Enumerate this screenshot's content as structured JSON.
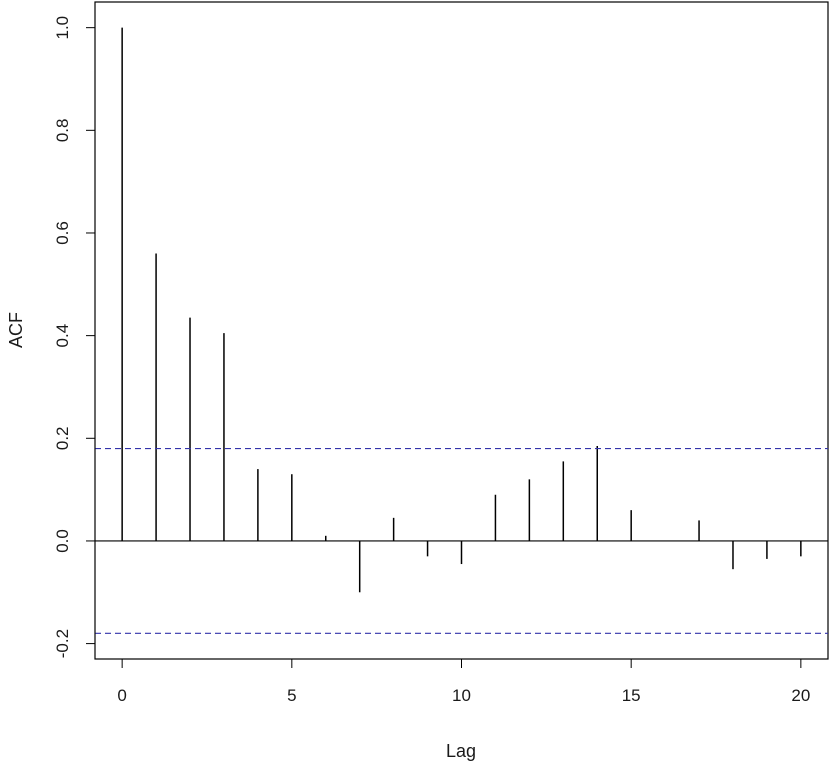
{
  "chart_data": {
    "type": "bar",
    "style": "acf-stem",
    "xlabel": "Lag",
    "ylabel": "ACF",
    "xlim": [
      -0.8,
      20.8
    ],
    "ylim": [
      -0.23,
      1.05
    ],
    "x_ticks": [
      0,
      5,
      10,
      15,
      20
    ],
    "y_ticks": [
      -0.2,
      0.0,
      0.2,
      0.4,
      0.6,
      0.8,
      1.0
    ],
    "y_tick_labels": [
      "-0.2",
      "0.0",
      "0.2",
      "0.4",
      "0.6",
      "0.8",
      "1.0"
    ],
    "lags": [
      0,
      1,
      2,
      3,
      4,
      5,
      6,
      7,
      8,
      9,
      10,
      11,
      12,
      13,
      14,
      15,
      16,
      17,
      18,
      19,
      20
    ],
    "acf": [
      1.0,
      0.56,
      0.435,
      0.405,
      0.14,
      0.13,
      0.01,
      -0.1,
      0.045,
      -0.03,
      -0.045,
      0.09,
      0.12,
      0.155,
      0.185,
      0.06,
      0.0,
      0.04,
      -0.055,
      -0.035,
      -0.03
    ],
    "confidence_bound": 0.18,
    "grid": false,
    "colors": {
      "stems": "#000000",
      "confidence_lines": "#3333aa",
      "zero_line": "#000000",
      "frame": "#000000"
    }
  }
}
